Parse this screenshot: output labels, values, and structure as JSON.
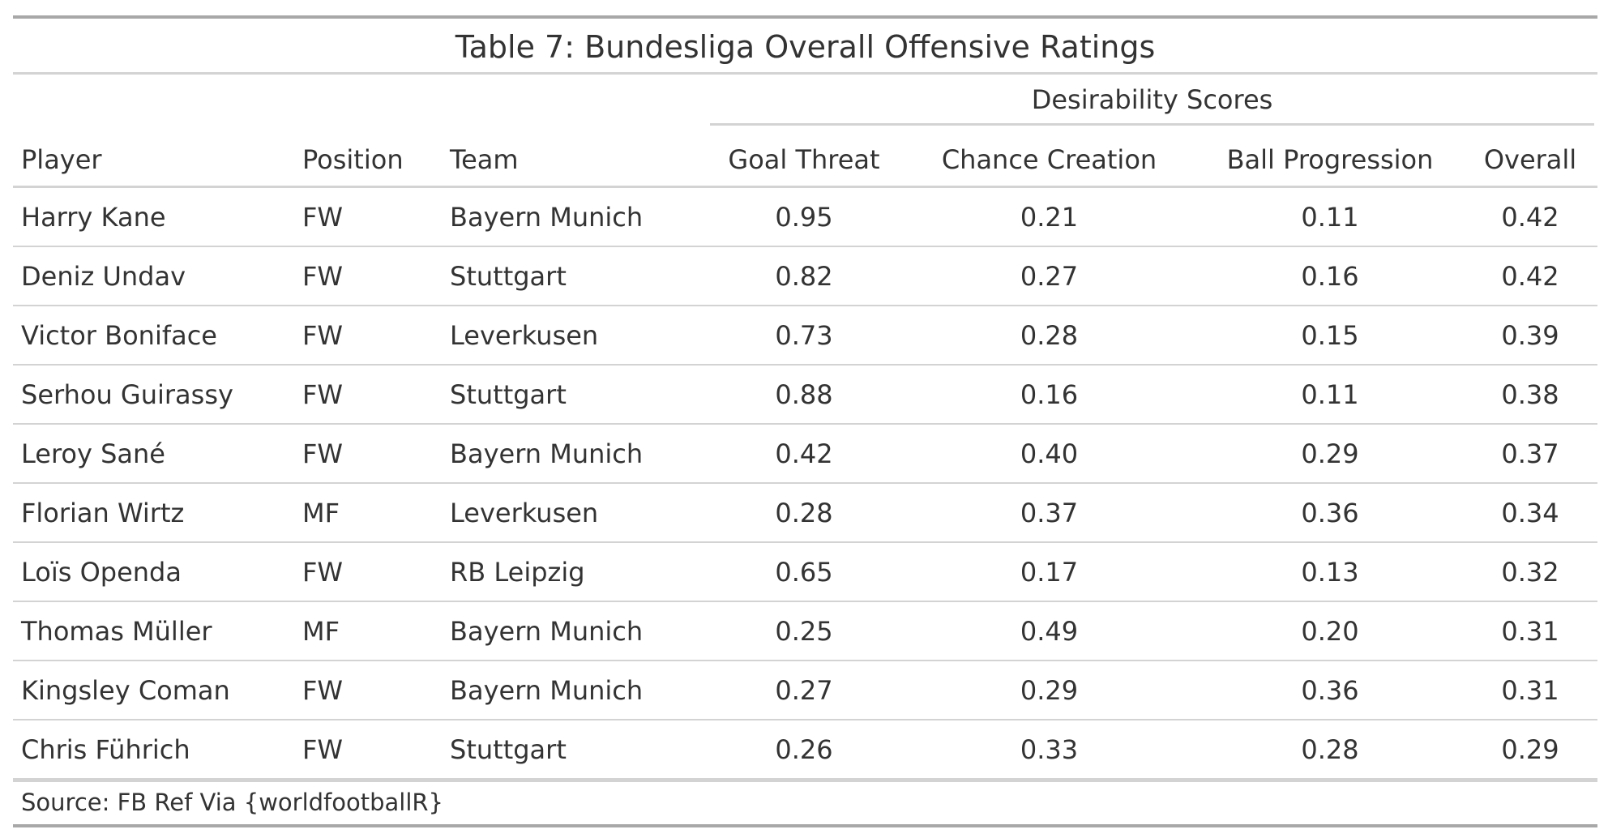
{
  "table": {
    "title": "Table 7: Bundesliga Overall Offensive Ratings",
    "spanner_label": "Desirability Scores",
    "columns": [
      "Player",
      "Position",
      "Team",
      "Goal Threat",
      "Chance Creation",
      "Ball Progression",
      "Overall"
    ],
    "rows": [
      [
        "Harry Kane",
        "FW",
        "Bayern Munich",
        "0.95",
        "0.21",
        "0.11",
        "0.42"
      ],
      [
        "Deniz Undav",
        "FW",
        "Stuttgart",
        "0.82",
        "0.27",
        "0.16",
        "0.42"
      ],
      [
        "Victor Boniface",
        "FW",
        "Leverkusen",
        "0.73",
        "0.28",
        "0.15",
        "0.39"
      ],
      [
        "Serhou Guirassy",
        "FW",
        "Stuttgart",
        "0.88",
        "0.16",
        "0.11",
        "0.38"
      ],
      [
        "Leroy Sané",
        "FW",
        "Bayern Munich",
        "0.42",
        "0.40",
        "0.29",
        "0.37"
      ],
      [
        "Florian Wirtz",
        "MF",
        "Leverkusen",
        "0.28",
        "0.37",
        "0.36",
        "0.34"
      ],
      [
        "Loïs Openda",
        "FW",
        "RB Leipzig",
        "0.65",
        "0.17",
        "0.13",
        "0.32"
      ],
      [
        "Thomas Müller",
        "MF",
        "Bayern Munich",
        "0.25",
        "0.49",
        "0.20",
        "0.31"
      ],
      [
        "Kingsley Coman",
        "FW",
        "Bayern Munich",
        "0.27",
        "0.29",
        "0.36",
        "0.31"
      ],
      [
        "Chris Führich",
        "FW",
        "Stuttgart",
        "0.26",
        "0.33",
        "0.28",
        "0.29"
      ]
    ],
    "source": "Source: FB Ref Via {worldfootballR}"
  },
  "chart_data": {
    "type": "table",
    "title": "Table 7: Bundesliga Overall Offensive Ratings",
    "column_groups": [
      {
        "label": "Desirability Scores",
        "columns": [
          "Goal Threat",
          "Chance Creation",
          "Ball Progression",
          "Overall"
        ]
      }
    ],
    "columns": [
      "Player",
      "Position",
      "Team",
      "Goal Threat",
      "Chance Creation",
      "Ball Progression",
      "Overall"
    ],
    "rows": [
      {
        "Player": "Harry Kane",
        "Position": "FW",
        "Team": "Bayern Munich",
        "Goal Threat": 0.95,
        "Chance Creation": 0.21,
        "Ball Progression": 0.11,
        "Overall": 0.42
      },
      {
        "Player": "Deniz Undav",
        "Position": "FW",
        "Team": "Stuttgart",
        "Goal Threat": 0.82,
        "Chance Creation": 0.27,
        "Ball Progression": 0.16,
        "Overall": 0.42
      },
      {
        "Player": "Victor Boniface",
        "Position": "FW",
        "Team": "Leverkusen",
        "Goal Threat": 0.73,
        "Chance Creation": 0.28,
        "Ball Progression": 0.15,
        "Overall": 0.39
      },
      {
        "Player": "Serhou Guirassy",
        "Position": "FW",
        "Team": "Stuttgart",
        "Goal Threat": 0.88,
        "Chance Creation": 0.16,
        "Ball Progression": 0.11,
        "Overall": 0.38
      },
      {
        "Player": "Leroy Sané",
        "Position": "FW",
        "Team": "Bayern Munich",
        "Goal Threat": 0.42,
        "Chance Creation": 0.4,
        "Ball Progression": 0.29,
        "Overall": 0.37
      },
      {
        "Player": "Florian Wirtz",
        "Position": "MF",
        "Team": "Leverkusen",
        "Goal Threat": 0.28,
        "Chance Creation": 0.37,
        "Ball Progression": 0.36,
        "Overall": 0.34
      },
      {
        "Player": "Loïs Openda",
        "Position": "FW",
        "Team": "RB Leipzig",
        "Goal Threat": 0.65,
        "Chance Creation": 0.17,
        "Ball Progression": 0.13,
        "Overall": 0.32
      },
      {
        "Player": "Thomas Müller",
        "Position": "MF",
        "Team": "Bayern Munich",
        "Goal Threat": 0.25,
        "Chance Creation": 0.49,
        "Ball Progression": 0.2,
        "Overall": 0.31
      },
      {
        "Player": "Kingsley Coman",
        "Position": "FW",
        "Team": "Bayern Munich",
        "Goal Threat": 0.27,
        "Chance Creation": 0.29,
        "Ball Progression": 0.36,
        "Overall": 0.31
      },
      {
        "Player": "Chris Führich",
        "Position": "FW",
        "Team": "Stuttgart",
        "Goal Threat": 0.26,
        "Chance Creation": 0.33,
        "Ball Progression": 0.28,
        "Overall": 0.29
      }
    ],
    "source": "Source: FB Ref Via {worldfootballR}"
  }
}
